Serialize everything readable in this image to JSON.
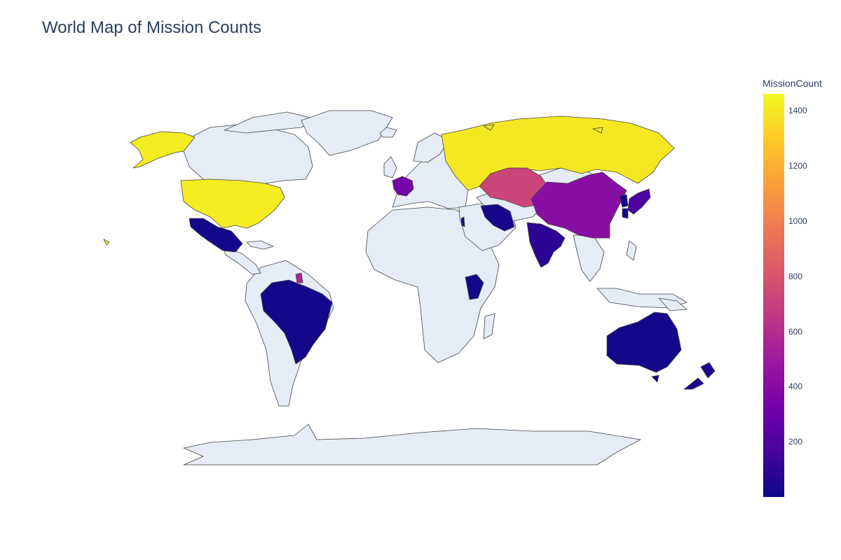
{
  "title": "World Map of Mission Counts",
  "colorbar": {
    "title": "MissionCount",
    "ticks": [
      "1400",
      "1200",
      "1000",
      "800",
      "600",
      "400",
      "200"
    ],
    "tick_values": [
      1400,
      1200,
      1000,
      800,
      600,
      400,
      200
    ],
    "range": [
      1,
      1460
    ],
    "colorscale": [
      "#0d0887",
      "#46039f",
      "#7201a8",
      "#9c179e",
      "#bd3786",
      "#d8576b",
      "#ed7953",
      "#fb9f3a",
      "#fdca26",
      "#f0f921"
    ]
  },
  "map": {
    "projection": "natural earth",
    "land_color": "#e5ecf6",
    "border_color": "#444444",
    "countries": [
      {
        "name": "Russia",
        "value": 1400
      },
      {
        "name": "United States",
        "value": 1420
      },
      {
        "name": "Kazakhstan",
        "value": 720
      },
      {
        "name": "China",
        "value": 410
      },
      {
        "name": "France",
        "value": 340
      },
      {
        "name": "Japan",
        "value": 190
      },
      {
        "name": "India",
        "value": 90
      },
      {
        "name": "Iran",
        "value": 30
      },
      {
        "name": "Israel",
        "value": 30
      },
      {
        "name": "North Korea",
        "value": 15
      },
      {
        "name": "South Korea",
        "value": 10
      },
      {
        "name": "Mexico",
        "value": 20
      },
      {
        "name": "Brazil",
        "value": 20
      },
      {
        "name": "Kenya",
        "value": 20
      },
      {
        "name": "Australia",
        "value": 20
      },
      {
        "name": "New Zealand",
        "value": 40
      },
      {
        "name": "French Guiana",
        "value": 560
      }
    ]
  }
}
